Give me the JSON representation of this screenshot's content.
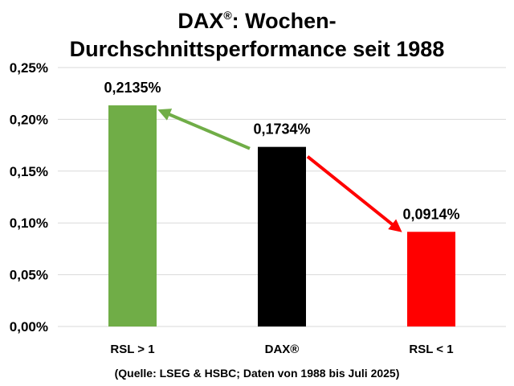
{
  "title": {
    "line1_main": "DAX",
    "line1_reg": "®",
    "line1_rest": ": Wochen-",
    "line2": "Durchschnittsperformance seit 1988"
  },
  "source": "(Quelle: LSEG & HSBC; Daten von 1988 bis Juli 2025)",
  "colors": {
    "rsl_gt_1": "#70ad47",
    "dax": "#000000",
    "rsl_lt_1": "#ff0000",
    "grid": "#d9d9d9"
  },
  "chart_data": {
    "type": "bar",
    "title": "DAX®: Wochen-Durchschnittsperformance seit 1988",
    "categories": [
      "RSL > 1",
      "DAX®",
      "RSL < 1"
    ],
    "values": [
      0.2135,
      0.1734,
      0.0914
    ],
    "value_labels": [
      "0,2135%",
      "0,1734%",
      "0,0914%"
    ],
    "ylim": [
      0,
      0.25
    ],
    "yticks": [
      0,
      0.05,
      0.1,
      0.15,
      0.2,
      0.25
    ],
    "ytick_labels": [
      "0,00%",
      "0,05%",
      "0,10%",
      "0,15%",
      "0,20%",
      "0,25%"
    ],
    "grid": true,
    "xlabel": "",
    "ylabel": "",
    "annotations": [
      {
        "type": "arrow",
        "from": "DAX®",
        "to": "RSL > 1",
        "color": "#70ad47"
      },
      {
        "type": "arrow",
        "from": "DAX®",
        "to": "RSL < 1",
        "color": "#ff0000"
      }
    ]
  }
}
